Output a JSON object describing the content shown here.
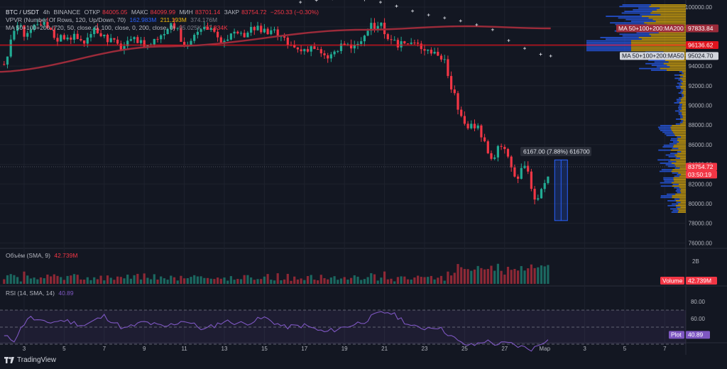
{
  "legend": {
    "symbol": "BTC / USDT",
    "interval": "4h",
    "exchange": "BINANCE",
    "open_label": "ОТКР",
    "open": "84005.05",
    "high_label": "МАКС",
    "high": "84099.99",
    "low_label": "МИН",
    "low": "83701.14",
    "close_label": "ЗАКР",
    "close": "83754.72",
    "change": "−250.33 (−0.30%)",
    "vprp_name": "VPVR (Number Of Rows, 120, Up/Down, 70)",
    "vprp_v1": "162.983M",
    "vprp_v2": "211.193M",
    "vprp_v3": "374.176M",
    "ma_name": "MA 50+100+200 (720, 50, close, 0, 100, close, 0, 200, close, 0)",
    "ma_v1": "95.025K",
    "ma_v2": "97.834K"
  },
  "volume_legend": {
    "name": "Объём (SMA, 9)",
    "value": "42.739M"
  },
  "rsi_legend": {
    "name": "RSI (14, SMA, 14)",
    "value": "40.89"
  },
  "measure_label": "6167.00 (7.88%) 616700",
  "right_axis": {
    "price_ticks": [
      "100000.00",
      "98000.00",
      "96000.00",
      "94000.00",
      "92000.00",
      "90000.00",
      "88000.00",
      "86000.00",
      "84000.00",
      "82000.00",
      "80000.00",
      "78000.00",
      "76000.00"
    ],
    "volume_tick": "2B",
    "rsi_ticks": [
      "80.00",
      "60.00",
      "40.00"
    ],
    "tag_ma200": "MA 50+100+200:MA200",
    "tag_ma200_value": "97833.84",
    "tag_hline_value": "96136.62",
    "tag_ma50": "MA 50+100+200:MA50",
    "tag_ma50_value": "95024.70",
    "tag_price": "83754.72",
    "tag_countdown": "03:50:19",
    "tag_volume_label": "Volume",
    "tag_volume_value": "42.739M",
    "tag_rsi_label": "Plot",
    "tag_rsi_value": "40.89"
  },
  "x_axis_ticks": [
    "3",
    "5",
    "7",
    "9",
    "11",
    "13",
    "15",
    "17",
    "19",
    "21",
    "23",
    "25",
    "27",
    "Мар",
    "3",
    "5",
    "7"
  ],
  "brand": "TradingView",
  "colors": {
    "up": "#22ab94",
    "down": "#f23645",
    "ma200": "#9c2b3a",
    "ma50_marker": "#d1d4dc",
    "hline": "#e0141e",
    "rsi": "#7e57c2",
    "profile_up": "#2962ff",
    "profile_down": "#f0b90b",
    "background": "#131722"
  },
  "chart_data": [
    {
      "type": "candlestick",
      "title": "BTC / USDT · 4h · BINANCE",
      "x_ticks": [
        "3",
        "5",
        "7",
        "9",
        "11",
        "13",
        "15",
        "17",
        "19",
        "21",
        "23",
        "25",
        "27",
        "Мар",
        "3",
        "5",
        "7"
      ],
      "ylim": [
        75500,
        101200
      ],
      "y_ticks": [
        76000,
        78000,
        80000,
        82000,
        84000,
        86000,
        88000,
        90000,
        92000,
        94000,
        96000,
        98000,
        100000
      ],
      "horizontal_line": 96136.62,
      "last_price": 83754.72,
      "path_days": [
        2.0,
        2.4,
        2.6,
        3.0,
        3.5,
        4.0,
        4.6,
        5.2,
        6.0,
        6.6,
        7.2,
        7.8,
        8.6,
        9.2,
        9.8,
        10.4,
        11.0,
        11.8,
        12.2,
        12.7,
        13.2,
        13.8,
        14.4,
        15.0,
        15.6,
        16.2,
        16.8,
        17.4,
        18.0,
        18.4,
        19.0,
        19.6,
        20.2,
        20.8,
        21.2,
        21.8,
        22.4,
        23.0,
        23.6,
        24.0,
        24.4,
        24.8,
        25.2,
        25.6,
        26.0,
        26.4,
        26.8,
        27.2,
        27.6,
        28.0,
        28.3,
        28.6,
        29.0,
        29.3
      ],
      "path_prices": [
        94200,
        96800,
        98500,
        97400,
        97800,
        98200,
        96800,
        97200,
        96500,
        97700,
        96800,
        95900,
        96600,
        96100,
        97200,
        98600,
        96000,
        97500,
        98100,
        96400,
        97200,
        96900,
        98000,
        97400,
        97300,
        96100,
        95600,
        96100,
        94800,
        95200,
        96200,
        95800,
        97800,
        98500,
        96200,
        96300,
        96300,
        95900,
        95300,
        94600,
        91500,
        88800,
        87500,
        88300,
        86200,
        84200,
        86200,
        84700,
        82600,
        84300,
        81800,
        79800,
        82100,
        83754
      ]
    },
    {
      "type": "line",
      "name": "MA 50+100+200:MA200",
      "x": [
        1.4,
        10.0,
        20.0,
        25.0,
        29.3
      ],
      "y": [
        93400,
        96000,
        97700,
        98050,
        97834
      ]
    },
    {
      "type": "scatter",
      "name": "MA 50+100+200:MA50",
      "x": [
        16.8,
        17.6,
        18.4,
        19.2,
        20.0,
        20.8,
        21.6,
        22.4,
        23.2,
        24.0,
        24.8,
        25.6,
        26.4,
        27.2,
        28.0,
        28.8,
        29.3
      ],
      "y": [
        100500,
        100700,
        100850,
        100900,
        100750,
        100500,
        100100,
        99600,
        99200,
        98900,
        98600,
        98200,
        97700,
        96600,
        95800,
        95200,
        95025
      ]
    },
    {
      "type": "bar",
      "name": "Объём (SMA, 9)",
      "last_value": "42.739M",
      "y_ticks": [
        "2B"
      ]
    },
    {
      "type": "line",
      "name": "RSI (14, SMA, 14)",
      "last_value": 40.89,
      "ylim": [
        20,
        90
      ],
      "y_ticks": [
        80,
        60,
        40
      ],
      "band": [
        30,
        70
      ],
      "x": [
        2.0,
        2.5,
        3.2,
        4.0,
        5.0,
        6.0,
        7.0,
        8.0,
        9.0,
        10.0,
        11.0,
        12.0,
        13.0,
        14.0,
        15.0,
        16.0,
        17.0,
        18.0,
        19.0,
        20.0,
        20.6,
        21.2,
        21.8,
        22.4,
        23.0,
        23.6,
        24.2,
        24.8,
        25.4,
        26.0,
        26.6,
        27.2,
        27.8,
        28.4,
        29.0,
        29.3
      ],
      "y": [
        39,
        35,
        62,
        55,
        58,
        52,
        63,
        48,
        56,
        50,
        58,
        47,
        57,
        54,
        61,
        50,
        52,
        44,
        50,
        57,
        65,
        68,
        60,
        50,
        49,
        51,
        42,
        31,
        28,
        34,
        30,
        31,
        27,
        24,
        34,
        40.89
      ]
    }
  ]
}
